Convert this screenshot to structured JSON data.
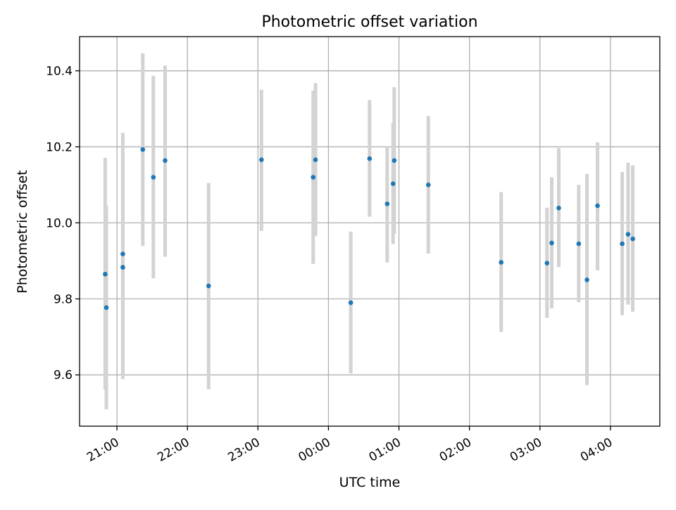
{
  "chart_data": {
    "type": "scatter",
    "title": "Photometric offset variation",
    "xlabel": "UTC time",
    "ylabel": "Photometric offset",
    "x_tick_labels": [
      "21:00",
      "22:00",
      "23:00",
      "00:00",
      "01:00",
      "02:00",
      "03:00",
      "04:00"
    ],
    "x_tick_hours": [
      21,
      22,
      23,
      24,
      25,
      26,
      27,
      28
    ],
    "y_ticks": [
      9.6,
      9.8,
      10.0,
      10.2,
      10.4
    ],
    "y_tick_labels": [
      "9.6",
      "9.8",
      "10.0",
      "10.2",
      "10.4"
    ],
    "xlim_hours": [
      20.47,
      28.7
    ],
    "ylim": [
      9.465,
      10.49
    ],
    "grid": true,
    "points": [
      {
        "time": "20:50",
        "y": 9.865,
        "ylow": 9.562,
        "yhigh": 10.171
      },
      {
        "time": "20:51",
        "y": 9.777,
        "ylow": 9.509,
        "yhigh": 10.045
      },
      {
        "time": "21:05",
        "y": 9.918,
        "ylow": 9.589,
        "yhigh": 10.181
      },
      {
        "time": "21:05",
        "y": 9.883,
        "ylow": 9.589,
        "yhigh": 10.237
      },
      {
        "time": "21:22",
        "y": 10.193,
        "ylow": 9.939,
        "yhigh": 10.446
      },
      {
        "time": "21:31",
        "y": 10.12,
        "ylow": 9.854,
        "yhigh": 10.387
      },
      {
        "time": "21:41",
        "y": 10.164,
        "ylow": 9.911,
        "yhigh": 10.414
      },
      {
        "time": "22:18",
        "y": 9.834,
        "ylow": 9.562,
        "yhigh": 10.105
      },
      {
        "time": "23:03",
        "y": 10.166,
        "ylow": 9.979,
        "yhigh": 10.35
      },
      {
        "time": "23:47",
        "y": 10.12,
        "ylow": 9.892,
        "yhigh": 10.348
      },
      {
        "time": "23:49",
        "y": 10.166,
        "ylow": 9.965,
        "yhigh": 10.368
      },
      {
        "time": "00:19",
        "y": 9.79,
        "ylow": 9.604,
        "yhigh": 9.977
      },
      {
        "time": "00:35",
        "y": 10.169,
        "ylow": 10.016,
        "yhigh": 10.323
      },
      {
        "time": "00:50",
        "y": 10.05,
        "ylow": 9.896,
        "yhigh": 10.202
      },
      {
        "time": "00:55",
        "y": 10.103,
        "ylow": 9.944,
        "yhigh": 10.263
      },
      {
        "time": "00:56",
        "y": 10.164,
        "ylow": 9.971,
        "yhigh": 10.357
      },
      {
        "time": "01:25",
        "y": 10.1,
        "ylow": 9.919,
        "yhigh": 10.281
      },
      {
        "time": "02:27",
        "y": 9.896,
        "ylow": 9.713,
        "yhigh": 10.081
      },
      {
        "time": "03:06",
        "y": 9.894,
        "ylow": 9.75,
        "yhigh": 10.04
      },
      {
        "time": "03:10",
        "y": 9.947,
        "ylow": 9.775,
        "yhigh": 10.12
      },
      {
        "time": "03:16",
        "y": 10.039,
        "ylow": 9.884,
        "yhigh": 10.197
      },
      {
        "time": "03:33",
        "y": 9.945,
        "ylow": 9.791,
        "yhigh": 10.1
      },
      {
        "time": "03:40",
        "y": 9.85,
        "ylow": 9.573,
        "yhigh": 10.129
      },
      {
        "time": "03:49",
        "y": 10.045,
        "ylow": 9.875,
        "yhigh": 10.212
      },
      {
        "time": "04:10",
        "y": 9.945,
        "ylow": 9.757,
        "yhigh": 10.134
      },
      {
        "time": "04:15",
        "y": 9.97,
        "ylow": 9.785,
        "yhigh": 10.158
      },
      {
        "time": "04:19",
        "y": 9.958,
        "ylow": 9.766,
        "yhigh": 10.151
      }
    ],
    "colors": {
      "marker": "#1f77b4",
      "errorbar": "#d3d3d3",
      "grid": "#b0b0b0",
      "axes": "#000000"
    }
  }
}
